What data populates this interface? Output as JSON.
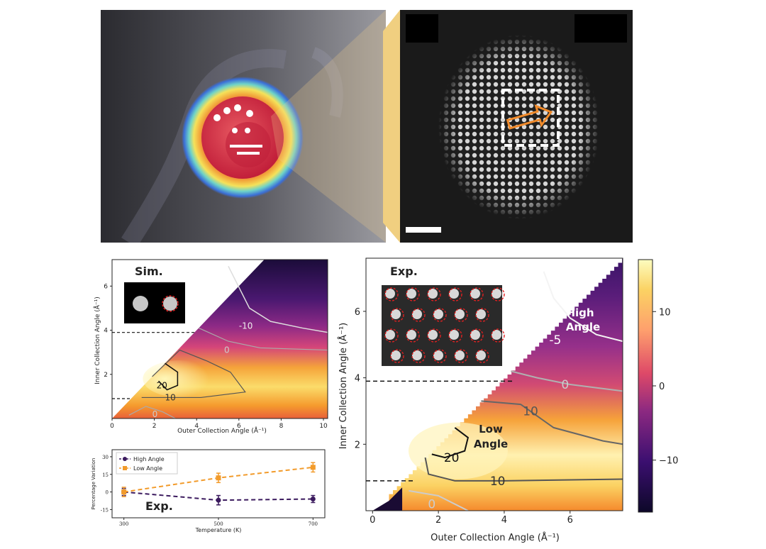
{
  "colors": {
    "magma_low": "#0d0829",
    "magma_mid": "#b3367f",
    "magma_orange": "#f4852c",
    "magma_high": "#fcf4b8",
    "high_angle_series": "#3b1a5e",
    "low_angle_series": "#f29b2b",
    "guide_line": "#111111"
  },
  "chart_data": [
    {
      "id": "sim_map",
      "type": "heatmap",
      "title": "Sim.",
      "xlabel": "Outer Collection Angle (Å⁻¹)",
      "ylabel": "Inner Collection Angle (Å⁻¹)",
      "xlim": [
        0,
        10.2
      ],
      "ylim": [
        0,
        7.2
      ],
      "x_ticks": [
        0,
        2,
        4,
        6,
        8,
        10
      ],
      "y_ticks": [
        2,
        4,
        6
      ],
      "x_tick_labels": [
        "0",
        "2",
        "4",
        "6",
        "8",
        "10"
      ],
      "y_tick_labels": [
        "2",
        "4",
        "6"
      ],
      "guide_lines_y": [
        0.9,
        3.9
      ],
      "contour_labels": [
        "-10",
        "0",
        "20",
        "10",
        "0"
      ]
    },
    {
      "id": "exp_map",
      "type": "heatmap",
      "title": "Exp.",
      "xlabel": "Outer Collection Angle (Å⁻¹)",
      "ylabel": "Inner Collection Angle (Å⁻¹)",
      "xlim": [
        -0.2,
        7.6
      ],
      "ylim": [
        0,
        7.6
      ],
      "x_ticks": [
        0,
        2,
        4,
        6
      ],
      "y_ticks": [
        2,
        4,
        6
      ],
      "x_tick_labels": [
        "0",
        "2",
        "4",
        "6"
      ],
      "y_tick_labels": [
        "2",
        "4",
        "6"
      ],
      "guide_lines_y": [
        0.9,
        3.9
      ],
      "contour_labels": [
        "-5",
        "0",
        "10",
        "20",
        "10",
        "0"
      ],
      "annotations": [
        "High",
        "Angle",
        "Low",
        "Angle"
      ],
      "colorbar": {
        "min": -17,
        "max": 17,
        "ticks": [
          10,
          0,
          -10
        ],
        "tick_labels": [
          "10",
          "0",
          "−10"
        ]
      }
    },
    {
      "id": "temperature_plot",
      "type": "line",
      "title": "Exp.",
      "xlabel": "Temperature (K)",
      "ylabel": "Percentage Variation",
      "x": [
        300,
        500,
        700
      ],
      "xlim": [
        275,
        725
      ],
      "ylim": [
        -22,
        36
      ],
      "x_tick_labels": [
        "300",
        "500",
        "700"
      ],
      "y_ticks": [
        30,
        15,
        0,
        -15
      ],
      "y_tick_labels": [
        "30",
        "15",
        "0",
        "-15"
      ],
      "series": [
        {
          "name": "High Angle",
          "values": [
            0,
            -7,
            -6
          ],
          "errors": [
            3,
            4,
            3
          ]
        },
        {
          "name": "Low Angle",
          "values": [
            0,
            12,
            21
          ],
          "errors": [
            4,
            4,
            4
          ]
        }
      ]
    }
  ]
}
